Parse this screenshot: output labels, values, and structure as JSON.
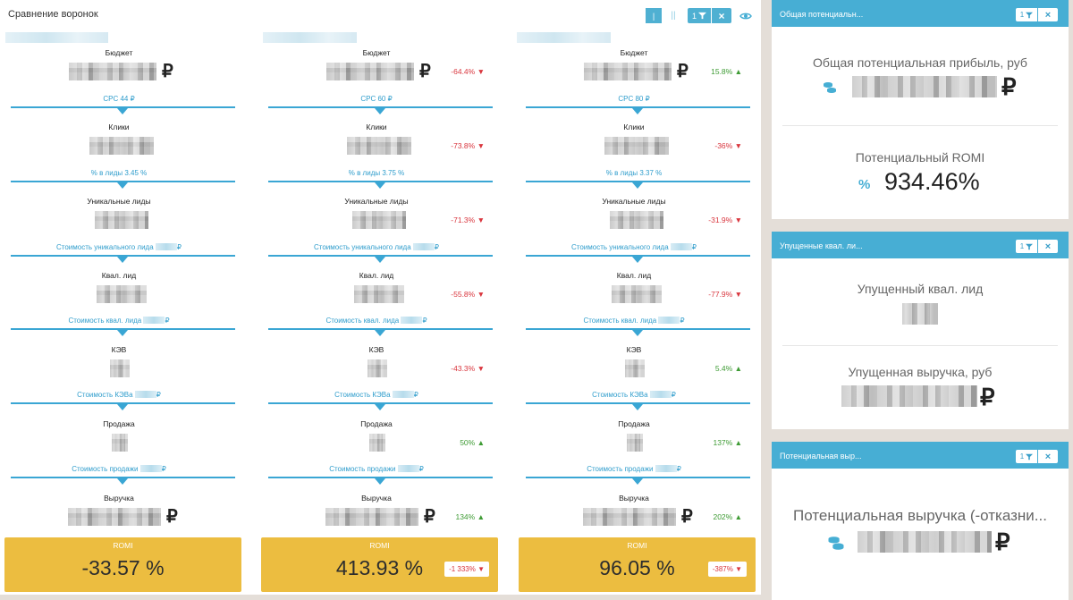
{
  "funnel_panel": {
    "title": "Сравнение воронок",
    "controls": {
      "view_one": "|",
      "view_two": "||",
      "filter_count": "1",
      "close": "×"
    }
  },
  "columns": [
    {
      "metrics": {
        "budget": "Бюджет",
        "clicks": "Клики",
        "unique_leads": "Уникальные лиды",
        "qual_leads": "Квал. лид",
        "kev": "КЭВ",
        "sales": "Продажа",
        "revenue": "Выручка"
      },
      "currency": "₽",
      "changes": {
        "budget": "",
        "clicks": "",
        "unique_leads": "",
        "qual_leads": "",
        "kev": "",
        "sales": "",
        "revenue": ""
      },
      "conversions": {
        "cpc": "CPC 44 ₽",
        "lead_rate": "% в лиды 3.45 %",
        "unique_lead_cost": "Стоимость уникального лида",
        "qual_lead_cost": "Стоимость квал. лида",
        "kev_cost": "Стоимость КЭВа",
        "sale_cost": "Стоимость продажи"
      },
      "romi": {
        "label": "ROMI",
        "value": "-33.57 %",
        "change": ""
      }
    },
    {
      "metrics": {
        "budget": "Бюджет",
        "clicks": "Клики",
        "unique_leads": "Уникальные лиды",
        "qual_leads": "Квал. лид",
        "kev": "КЭВ",
        "sales": "Продажа",
        "revenue": "Выручка"
      },
      "currency": "₽",
      "changes": {
        "budget": "-64.4%",
        "clicks": "-73.8%",
        "unique_leads": "-71.3%",
        "qual_leads": "-55.8%",
        "kev": "-43.3%",
        "sales": "50%",
        "revenue": "134%"
      },
      "conversions": {
        "cpc": "CPC 60 ₽",
        "lead_rate": "% в лиды 3.75 %",
        "unique_lead_cost": "Стоимость уникального лида",
        "qual_lead_cost": "Стоимость квал. лида",
        "kev_cost": "Стоимость КЭВа",
        "sale_cost": "Стоимость продажи"
      },
      "romi": {
        "label": "ROMI",
        "value": "413.93 %",
        "change": "-1 333%"
      }
    },
    {
      "metrics": {
        "budget": "Бюджет",
        "clicks": "Клики",
        "unique_leads": "Уникальные лиды",
        "qual_leads": "Квал. лид",
        "kev": "КЭВ",
        "sales": "Продажа",
        "revenue": "Выручка"
      },
      "currency": "₽",
      "changes": {
        "budget": "15.8%",
        "clicks": "-36%",
        "unique_leads": "-31.9%",
        "qual_leads": "-77.9%",
        "kev": "5.4%",
        "sales": "137%",
        "revenue": "202%"
      },
      "conversions": {
        "cpc": "CPC 80 ₽",
        "lead_rate": "% в лиды 3.37 %",
        "unique_lead_cost": "Стоимость уникального лида",
        "qual_lead_cost": "Стоимость квал. лида",
        "kev_cost": "Стоимость КЭВа",
        "sale_cost": "Стоимость продажи"
      },
      "romi": {
        "label": "ROMI",
        "value": "96.05 %",
        "change": "-387%"
      }
    }
  ],
  "widgets": {
    "potential_profit": {
      "title": "Общая потенциальн...",
      "filter_count": "1",
      "close": "×",
      "profit_label": "Общая потенциальная прибыль, руб",
      "profit_currency": "₽",
      "romi_label": "Потенциальный ROMI",
      "romi_icon": "%",
      "romi_value": "934.46%"
    },
    "missed_leads": {
      "title": "Упущенные квал. ли...",
      "filter_count": "1",
      "close": "×",
      "lead_label": "Упущенный квал. лид",
      "revenue_label": "Упущенная выручка, руб",
      "revenue_currency": "₽"
    },
    "potential_revenue": {
      "title": "Потенциальная выр...",
      "filter_count": "1",
      "close": "×",
      "label": "Потенциальная выручка (-отказни...",
      "currency": "₽"
    }
  },
  "colors": {
    "accent": "#47aed4",
    "romi_card": "#ecbd40",
    "negative": "#d9363e",
    "positive": "#3e9b34"
  }
}
